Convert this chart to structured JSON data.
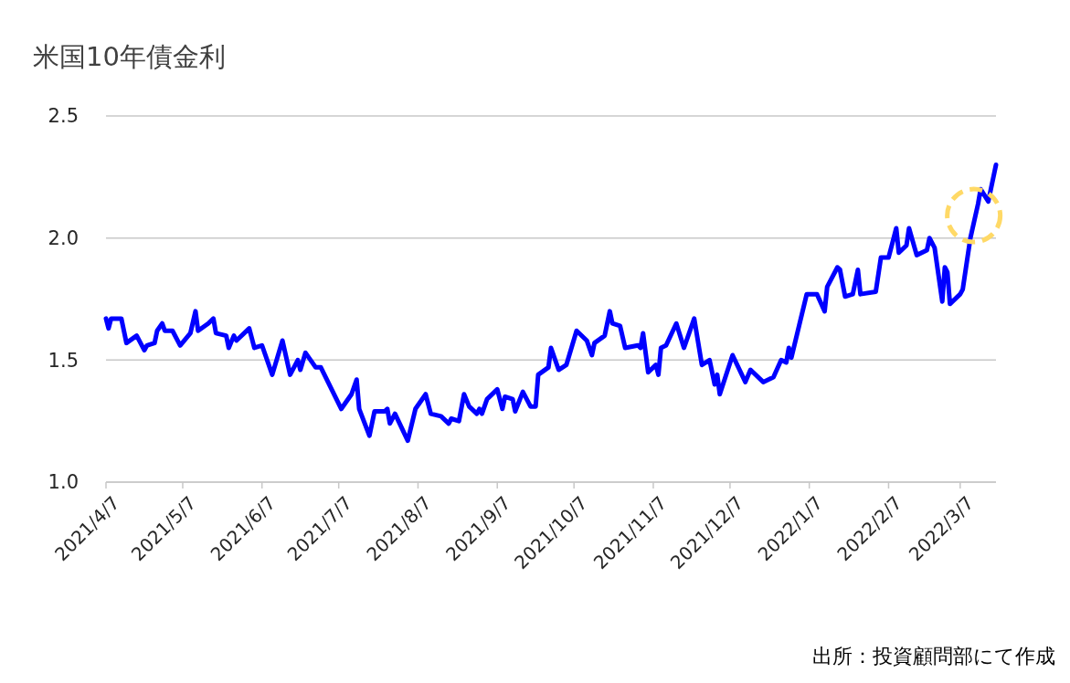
{
  "chart_data": {
    "type": "line",
    "title": "米国10年債金利",
    "annotations": [
      "出所：投資顧問部にて作成"
    ],
    "x": [
      "2021-04-07",
      "2021-04-08",
      "2021-04-09",
      "2021-04-13",
      "2021-04-14",
      "2021-04-15",
      "2021-04-19",
      "2021-04-22",
      "2021-04-23",
      "2021-04-26",
      "2021-04-27",
      "2021-04-29",
      "2021-04-30",
      "2021-05-03",
      "2021-05-06",
      "2021-05-10",
      "2021-05-12",
      "2021-05-13",
      "2021-05-17",
      "2021-05-19",
      "2021-05-20",
      "2021-05-24",
      "2021-05-25",
      "2021-05-27",
      "2021-05-28",
      "2021-06-02",
      "2021-06-04",
      "2021-06-07",
      "2021-06-11",
      "2021-06-15",
      "2021-06-18",
      "2021-06-21",
      "2021-06-22",
      "2021-06-24",
      "2021-06-28",
      "2021-06-30",
      "2021-07-08",
      "2021-07-12",
      "2021-07-14",
      "2021-07-15",
      "2021-07-19",
      "2021-07-21",
      "2021-07-25",
      "2021-07-26",
      "2021-07-27",
      "2021-07-29",
      "2021-08-03",
      "2021-08-06",
      "2021-08-10",
      "2021-08-12",
      "2021-08-16",
      "2021-08-19",
      "2021-08-20",
      "2021-08-23",
      "2021-08-25",
      "2021-08-27",
      "2021-08-30",
      "2021-08-31",
      "2021-09-01",
      "2021-09-03",
      "2021-09-07",
      "2021-09-09",
      "2021-09-10",
      "2021-09-13",
      "2021-09-14",
      "2021-09-17",
      "2021-09-20",
      "2021-09-22",
      "2021-09-23",
      "2021-09-27",
      "2021-09-28",
      "2021-10-01",
      "2021-10-04",
      "2021-10-08",
      "2021-10-12",
      "2021-10-14",
      "2021-10-15",
      "2021-10-19",
      "2021-10-21",
      "2021-10-22",
      "2021-10-25",
      "2021-10-27",
      "2021-11-01",
      "2021-11-02",
      "2021-11-03",
      "2021-11-05",
      "2021-11-08",
      "2021-11-09",
      "2021-11-10",
      "2021-11-12",
      "2021-11-16",
      "2021-11-19",
      "2021-11-23",
      "2021-11-26",
      "2021-11-29",
      "2021-12-01",
      "2021-12-02",
      "2021-12-03",
      "2021-12-08",
      "2021-12-13",
      "2021-12-15",
      "2021-12-20",
      "2021-12-24",
      "2021-12-27",
      "2021-12-29",
      "2021-12-30",
      "2021-12-31",
      "2022-01-03",
      "2022-01-06",
      "2022-01-10",
      "2022-01-13",
      "2022-01-14",
      "2022-01-18",
      "2022-01-19",
      "2022-01-21",
      "2022-01-24",
      "2022-01-26",
      "2022-01-27",
      "2022-02-02",
      "2022-02-04",
      "2022-02-07",
      "2022-02-08",
      "2022-02-10",
      "2022-02-11",
      "2022-02-14",
      "2022-02-15",
      "2022-02-18",
      "2022-02-22",
      "2022-02-23",
      "2022-02-25",
      "2022-02-28",
      "2022-03-01",
      "2022-03-02",
      "2022-03-03",
      "2022-03-07",
      "2022-03-08",
      "2022-03-11",
      "2022-03-14",
      "2022-03-15",
      "2022-03-18",
      "2022-03-21"
    ],
    "series": [
      {
        "color": "#0000ff",
        "values": [
          1.67,
          1.63,
          1.67,
          1.67,
          1.62,
          1.57,
          1.6,
          1.54,
          1.56,
          1.57,
          1.62,
          1.65,
          1.62,
          1.62,
          1.56,
          1.61,
          1.7,
          1.62,
          1.65,
          1.67,
          1.61,
          1.6,
          1.55,
          1.6,
          1.58,
          1.63,
          1.55,
          1.56,
          1.44,
          1.58,
          1.44,
          1.5,
          1.46,
          1.53,
          1.47,
          1.47,
          1.3,
          1.36,
          1.42,
          1.3,
          1.19,
          1.29,
          1.29,
          1.3,
          1.24,
          1.28,
          1.17,
          1.3,
          1.36,
          1.28,
          1.27,
          1.24,
          1.26,
          1.25,
          1.36,
          1.31,
          1.28,
          1.3,
          1.28,
          1.34,
          1.38,
          1.3,
          1.35,
          1.34,
          1.29,
          1.37,
          1.31,
          1.31,
          1.44,
          1.47,
          1.55,
          1.46,
          1.48,
          1.62,
          1.58,
          1.52,
          1.57,
          1.6,
          1.7,
          1.65,
          1.64,
          1.55,
          1.56,
          1.55,
          1.61,
          1.45,
          1.48,
          1.44,
          1.55,
          1.56,
          1.65,
          1.55,
          1.67,
          1.48,
          1.5,
          1.4,
          1.44,
          1.36,
          1.52,
          1.41,
          1.46,
          1.41,
          1.43,
          1.5,
          1.49,
          1.55,
          1.51,
          1.64,
          1.77,
          1.77,
          1.7,
          1.8,
          1.88,
          1.87,
          1.76,
          1.77,
          1.87,
          1.77,
          1.78,
          1.92,
          1.92,
          1.96,
          2.04,
          1.94,
          1.97,
          2.04,
          1.93,
          1.95,
          2.0,
          1.96,
          1.74,
          1.88,
          1.86,
          1.73,
          1.77,
          1.79,
          2.0,
          2.14,
          2.2,
          2.15,
          2.3
        ]
      }
    ],
    "xlim": [
      "2021-04-07",
      "2022-03-21"
    ],
    "xticks": [
      {
        "value": "2021-04-07",
        "label": "2021/4/7"
      },
      {
        "value": "2021-05-07",
        "label": "2021/5/7"
      },
      {
        "value": "2021-06-07",
        "label": "2021/6/7"
      },
      {
        "value": "2021-07-07",
        "label": "2021/7/7"
      },
      {
        "value": "2021-08-07",
        "label": "2021/8/7"
      },
      {
        "value": "2021-09-07",
        "label": "2021/9/7"
      },
      {
        "value": "2021-10-07",
        "label": "2021/10/7"
      },
      {
        "value": "2021-11-07",
        "label": "2021/11/7"
      },
      {
        "value": "2021-12-07",
        "label": "2021/12/7"
      },
      {
        "value": "2022-01-07",
        "label": "2022/1/7"
      },
      {
        "value": "2022-02-07",
        "label": "2022/2/7"
      },
      {
        "value": "2022-03-07",
        "label": "2022/3/7"
      }
    ],
    "ylim": [
      1.0,
      2.5
    ],
    "yticks": [
      {
        "value": 1.0,
        "label": "1.0"
      },
      {
        "value": 1.5,
        "label": "1.5"
      },
      {
        "value": 2.0,
        "label": "2.0"
      },
      {
        "value": 2.5,
        "label": "2.5"
      }
    ],
    "grid": "y"
  }
}
